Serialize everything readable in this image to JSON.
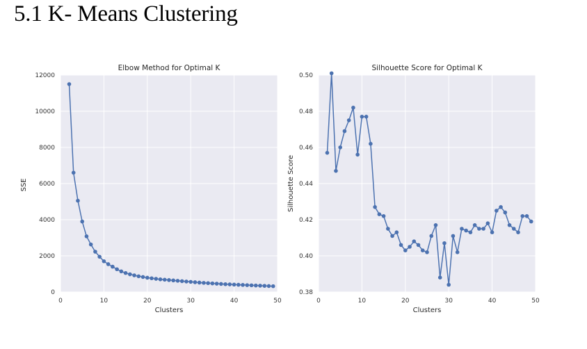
{
  "page": {
    "heading": "5.1 K- Means Clustering"
  },
  "chart_data": [
    {
      "type": "line",
      "title": "Elbow Method for Optimal K",
      "xlabel": "Clusters",
      "ylabel": "SSE",
      "xlim": [
        0,
        50
      ],
      "ylim": [
        0,
        12000
      ],
      "xticks": [
        0,
        10,
        20,
        30,
        40,
        50
      ],
      "yticks": [
        0,
        2000,
        4000,
        6000,
        8000,
        10000,
        12000
      ],
      "grid": true,
      "color": "#4c72b0",
      "background": "#eaeaf2",
      "x": [
        2,
        3,
        4,
        5,
        6,
        7,
        8,
        9,
        10,
        11,
        12,
        13,
        14,
        15,
        16,
        17,
        18,
        19,
        20,
        21,
        22,
        23,
        24,
        25,
        26,
        27,
        28,
        29,
        30,
        31,
        32,
        33,
        34,
        35,
        36,
        37,
        38,
        39,
        40,
        41,
        42,
        43,
        44,
        45,
        46,
        47,
        48,
        49
      ],
      "values": [
        11500,
        6600,
        5050,
        3900,
        3080,
        2630,
        2230,
        1950,
        1700,
        1540,
        1400,
        1260,
        1140,
        1050,
        980,
        920,
        870,
        830,
        790,
        760,
        730,
        700,
        680,
        660,
        640,
        620,
        600,
        580,
        560,
        540,
        520,
        505,
        490,
        475,
        460,
        445,
        430,
        420,
        410,
        400,
        390,
        380,
        370,
        360,
        350,
        340,
        330,
        320
      ]
    },
    {
      "type": "line",
      "title": "Silhouette Score for Optimal K",
      "xlabel": "Clusters",
      "ylabel": "Silhouette Score",
      "xlim": [
        0,
        50
      ],
      "ylim": [
        0.38,
        0.5
      ],
      "xticks": [
        0,
        10,
        20,
        30,
        40,
        50
      ],
      "yticks": [
        0.38,
        0.4,
        0.42,
        0.44,
        0.46,
        0.48,
        0.5
      ],
      "grid": true,
      "color": "#4c72b0",
      "background": "#eaeaf2",
      "x": [
        2,
        3,
        4,
        5,
        6,
        7,
        8,
        9,
        10,
        11,
        12,
        13,
        14,
        15,
        16,
        17,
        18,
        19,
        20,
        21,
        22,
        23,
        24,
        25,
        26,
        27,
        28,
        29,
        30,
        31,
        32,
        33,
        34,
        35,
        36,
        37,
        38,
        39,
        40,
        41,
        42,
        43,
        44,
        45,
        46,
        47,
        48,
        49
      ],
      "values": [
        0.457,
        0.501,
        0.447,
        0.46,
        0.469,
        0.475,
        0.482,
        0.456,
        0.477,
        0.477,
        0.462,
        0.427,
        0.423,
        0.422,
        0.415,
        0.411,
        0.413,
        0.406,
        0.403,
        0.405,
        0.408,
        0.406,
        0.403,
        0.402,
        0.411,
        0.417,
        0.388,
        0.407,
        0.384,
        0.411,
        0.402,
        0.415,
        0.414,
        0.413,
        0.417,
        0.415,
        0.415,
        0.418,
        0.413,
        0.425,
        0.427,
        0.424,
        0.417,
        0.415,
        0.413,
        0.422,
        0.422,
        0.419
      ]
    }
  ]
}
